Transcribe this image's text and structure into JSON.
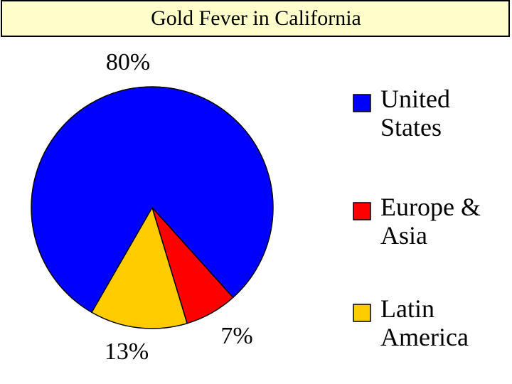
{
  "chart_data": {
    "type": "pie",
    "title": "Gold Fever in California",
    "categories": [
      "United States",
      "Europe & Asia",
      "Latin America"
    ],
    "values": [
      80,
      7,
      13
    ],
    "value_labels": [
      "80%",
      "7%",
      "13%"
    ],
    "colors": [
      "#0000ff",
      "#ff0000",
      "#ffcc00"
    ],
    "legend": "right"
  }
}
